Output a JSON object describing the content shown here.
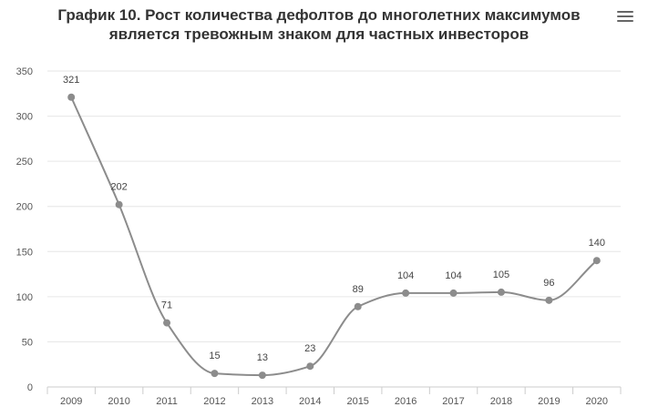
{
  "title_line1": "График 10. Рост количества дефолтов до многолетних максимумов",
  "title_line2": "является тревожным знаком для частных инвесторов",
  "menu_icon": "hamburger-menu-icon",
  "colors": {
    "line": "#8c8c8c",
    "point": "#8c8c8c",
    "grid": "#e6e6e6",
    "axis": "#cccccc"
  },
  "chart_data": {
    "type": "line",
    "title": "График 10. Рост количества дефолтов до многолетних максимумов является тревожным знаком для частных инвесторов",
    "x": [
      "2009",
      "2010",
      "2011",
      "2012",
      "2013",
      "2014",
      "2015",
      "2016",
      "2017",
      "2018",
      "2019",
      "2020"
    ],
    "series": [
      {
        "values": [
          321,
          202,
          71,
          15,
          13,
          23,
          89,
          104,
          104,
          105,
          96,
          140
        ]
      }
    ],
    "yticks": [
      0,
      50,
      100,
      150,
      200,
      250,
      300,
      350
    ],
    "ylim": [
      0,
      350
    ],
    "grid": true,
    "data_labels": true,
    "legend": "none"
  }
}
